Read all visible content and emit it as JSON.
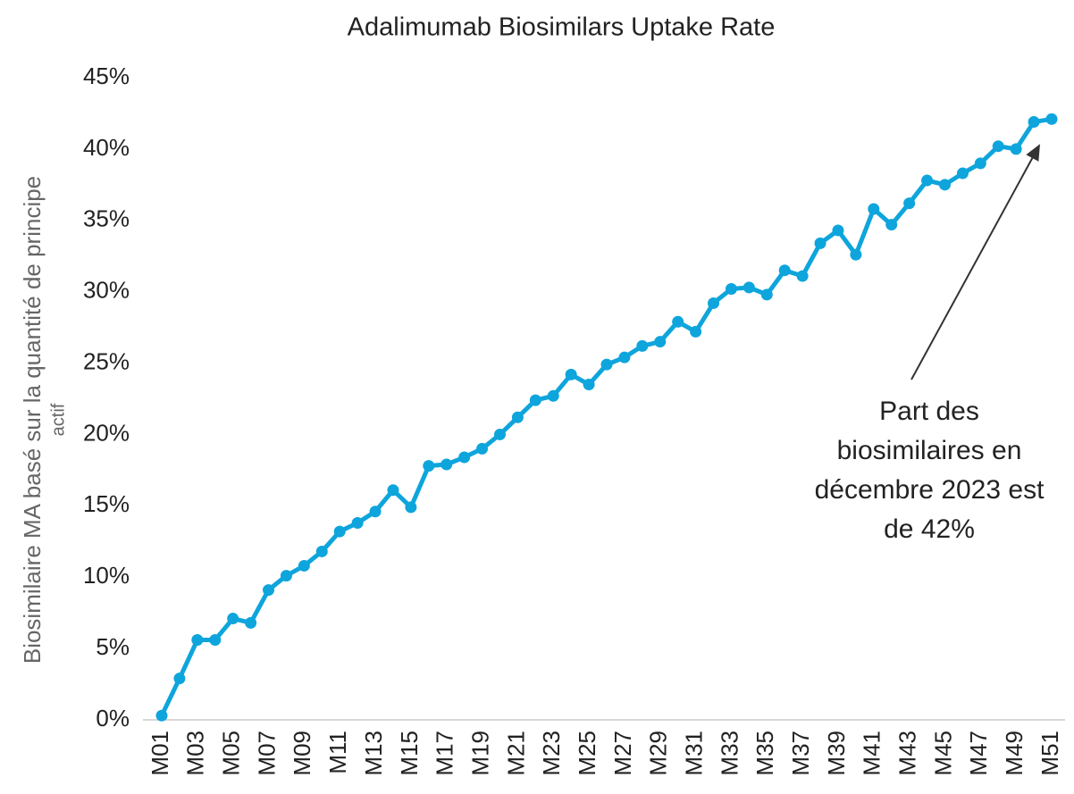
{
  "chart_data": {
    "type": "line",
    "title": "Adalimumab Biosimilars Uptake Rate",
    "y_label": [
      "Biosimilaire MA basé sur la quantité de principe",
      "actif"
    ],
    "annotation": [
      "Part des",
      "biosimilaires en",
      "décembre 2023 est",
      "de 42%"
    ],
    "categories": [
      "M01",
      null,
      "M03",
      null,
      "M05",
      null,
      "M07",
      null,
      "M09",
      null,
      "M11",
      null,
      "M13",
      null,
      "M15",
      null,
      "M17",
      null,
      "M19",
      null,
      "M21",
      null,
      "M23",
      null,
      "M25",
      null,
      "M27",
      null,
      "M29",
      null,
      "M31",
      null,
      "M33",
      null,
      "M35",
      null,
      "M37",
      null,
      "M39",
      null,
      "M41",
      null,
      "M43",
      null,
      "M45",
      null,
      "M47",
      null,
      "M49",
      null,
      "M51"
    ],
    "values": [
      0.3,
      2.9,
      5.6,
      5.6,
      7.1,
      6.8,
      9.1,
      10.1,
      10.8,
      11.8,
      13.2,
      13.8,
      14.6,
      16.1,
      14.9,
      17.8,
      17.9,
      18.4,
      19.0,
      20.0,
      21.2,
      22.4,
      22.7,
      24.2,
      23.5,
      24.9,
      25.4,
      26.2,
      26.5,
      27.9,
      27.2,
      29.2,
      30.2,
      30.3,
      29.8,
      31.5,
      31.1,
      33.4,
      34.3,
      32.6,
      35.8,
      34.7,
      36.2,
      37.8,
      37.5,
      38.3,
      39.0,
      40.2,
      40.0,
      41.9,
      42.1
    ],
    "color": "#0ea5dc",
    "ylim": [
      0,
      45
    ],
    "yticks": [
      {
        "value": 0,
        "label": "0%"
      },
      {
        "value": 5,
        "label": "5%"
      },
      {
        "value": 10,
        "label": "10%"
      },
      {
        "value": 15,
        "label": "15%"
      },
      {
        "value": 20,
        "label": "20%"
      },
      {
        "value": 25,
        "label": "25%"
      },
      {
        "value": 30,
        "label": "30%"
      },
      {
        "value": 35,
        "label": "35%"
      },
      {
        "value": 40,
        "label": "40%"
      },
      {
        "value": 45,
        "label": "45%"
      }
    ],
    "grid": false
  }
}
